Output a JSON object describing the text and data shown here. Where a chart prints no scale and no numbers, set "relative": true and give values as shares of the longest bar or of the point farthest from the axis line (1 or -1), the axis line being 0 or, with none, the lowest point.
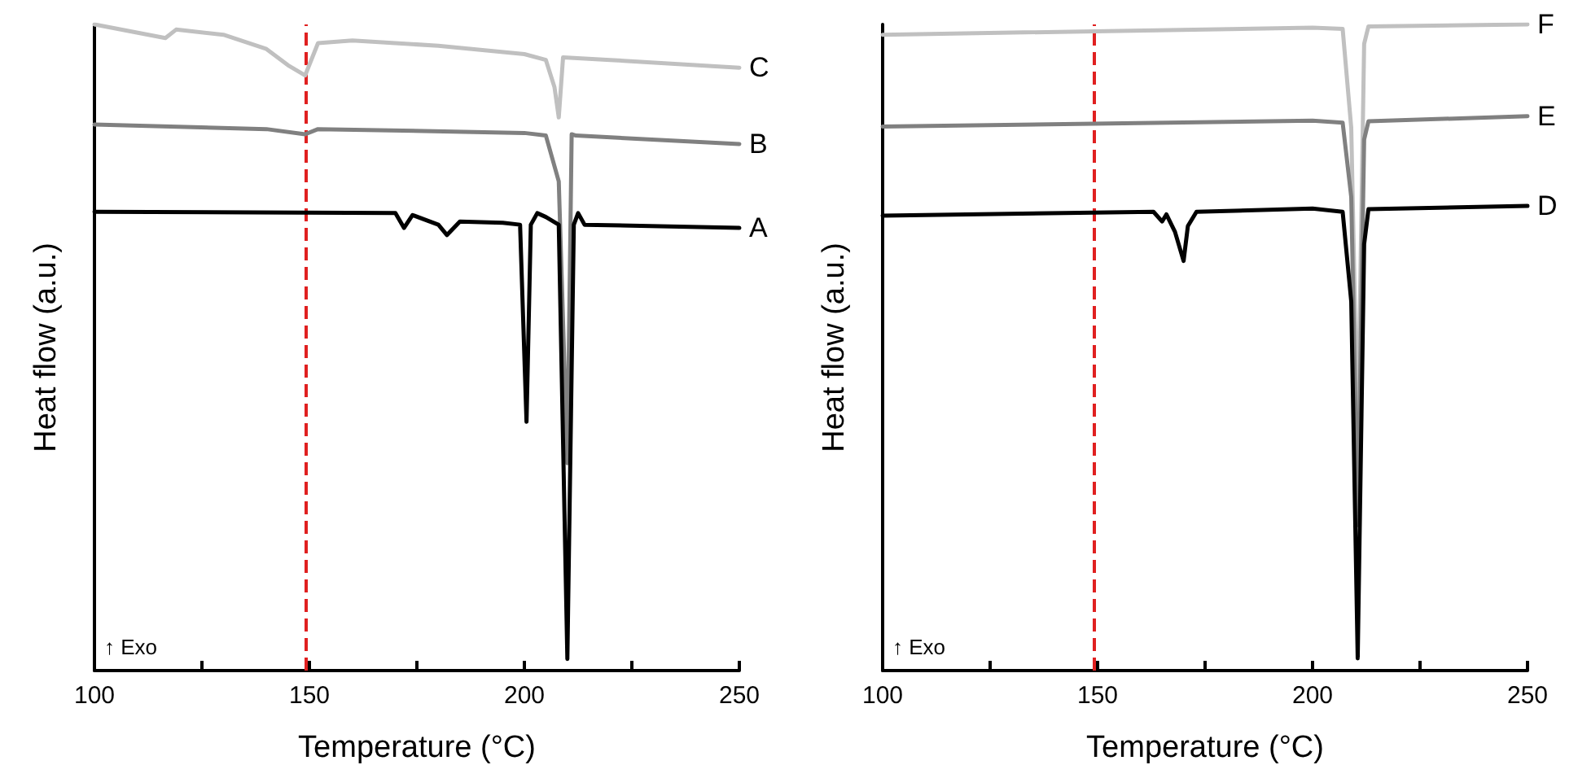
{
  "chart_data": [
    {
      "type": "line",
      "relative": true,
      "xlabel": "Temperature (°C)",
      "ylabel": "Heat flow (a.u.)",
      "xlim": [
        100,
        250
      ],
      "xticks": [
        100,
        {
          "value": 125,
          "label": null
        },
        150,
        {
          "value": 175,
          "label": null
        },
        200,
        {
          "value": 225,
          "label": null
        },
        250
      ],
      "tick_labels": "x",
      "grid": false,
      "legend": false,
      "marker": "none",
      "line_style": "solid",
      "annotations": [
        "↑ Exo"
      ],
      "ref_lines": [
        {
          "axis": "x",
          "value": 149,
          "color": "#e02020",
          "line_style": "dashed"
        }
      ],
      "series": [
        {
          "name": "C",
          "color": "#c0c0c0",
          "x": [
            100,
            116.5,
            119,
            130,
            140,
            145,
            149,
            152,
            160,
            180,
            200,
            205,
            207,
            208,
            209,
            220,
            250
          ],
          "values": [
            1.0,
            0.979,
            0.992,
            0.984,
            0.962,
            0.937,
            0.921,
            0.971,
            0.975,
            0.967,
            0.954,
            0.945,
            0.903,
            0.856,
            0.949,
            0.945,
            0.933
          ]
        },
        {
          "name": "B",
          "color": "#808080",
          "x": [
            100,
            140,
            149,
            152,
            200,
            205,
            208,
            210,
            211,
            212,
            250
          ],
          "values": [
            0.845,
            0.838,
            0.83,
            0.838,
            0.832,
            0.828,
            0.757,
            0.321,
            0.83,
            0.828,
            0.815
          ]
        },
        {
          "name": "A",
          "color": "#000000",
          "x": [
            100,
            170,
            172,
            174,
            180,
            182,
            185,
            195,
            199,
            200.5,
            201.5,
            203,
            205,
            208,
            210,
            211.5,
            212.5,
            214,
            250
          ],
          "values": [
            0.71,
            0.708,
            0.685,
            0.705,
            0.69,
            0.674,
            0.695,
            0.693,
            0.69,
            0.385,
            0.69,
            0.708,
            0.702,
            0.69,
            0.018,
            0.69,
            0.708,
            0.69,
            0.685
          ]
        }
      ]
    },
    {
      "type": "line",
      "relative": true,
      "xlabel": "Temperature (°C)",
      "ylabel": "Heat flow (a.u.)",
      "xlim": [
        100,
        250
      ],
      "xticks": [
        100,
        {
          "value": 125,
          "label": null
        },
        150,
        {
          "value": 175,
          "label": null
        },
        200,
        {
          "value": 225,
          "label": null
        },
        250
      ],
      "tick_labels": "x",
      "grid": false,
      "legend": false,
      "marker": "none",
      "line_style": "solid",
      "annotations": [
        "↑ Exo"
      ],
      "ref_lines": [
        {
          "axis": "x",
          "value": 149,
          "color": "#e02020",
          "line_style": "dashed"
        }
      ],
      "series": [
        {
          "name": "F",
          "color": "#c0c0c0",
          "x": [
            100,
            200,
            207,
            209,
            210.5,
            212,
            213,
            250
          ],
          "values": [
            0.984,
            0.995,
            0.993,
            0.84,
            0.351,
            0.97,
            0.997,
            1.0
          ]
        },
        {
          "name": "E",
          "color": "#808080",
          "x": [
            100,
            200,
            207,
            209,
            210.5,
            212,
            213,
            250
          ],
          "values": [
            0.842,
            0.851,
            0.848,
            0.733,
            0.225,
            0.822,
            0.85,
            0.858
          ]
        },
        {
          "name": "D",
          "color": "#000000",
          "x": [
            100,
            163,
            165,
            166,
            168,
            170,
            171,
            173,
            200,
            207,
            209,
            210.5,
            212,
            213,
            250
          ],
          "values": [
            0.704,
            0.71,
            0.695,
            0.706,
            0.679,
            0.634,
            0.688,
            0.71,
            0.715,
            0.71,
            0.571,
            0.019,
            0.66,
            0.714,
            0.719
          ]
        }
      ]
    }
  ]
}
